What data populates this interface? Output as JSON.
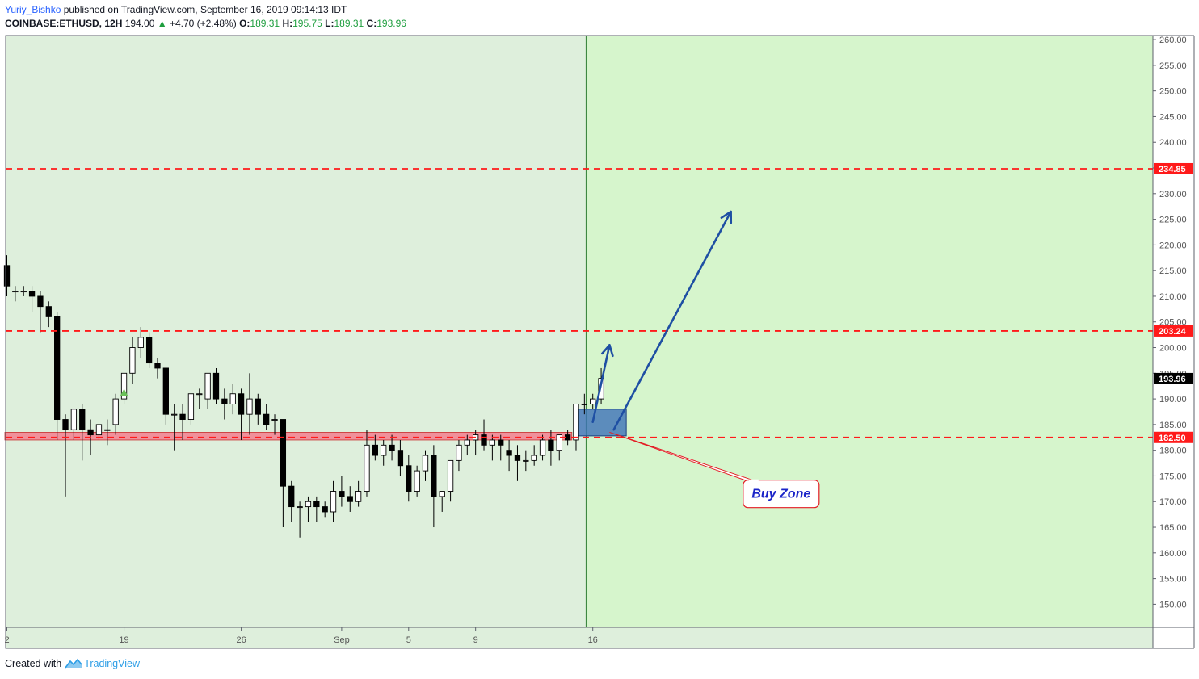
{
  "header": {
    "author": "Yuriy_Bishko",
    "published_text": "published on TradingView.com, September 16, 2019 09:14:13 IDT",
    "symbol": "COINBASE:ETHUSD, 12H",
    "last": "194.00",
    "change_arrow": "▲",
    "change": "+4.70 (+2.48%)",
    "o_label": "O:",
    "o_value": "189.31",
    "h_label": "H:",
    "h_value": "195.75",
    "l_label": "L:",
    "l_value": "189.31",
    "c_label": "C:",
    "c_value": "193.96"
  },
  "footer": {
    "created_with": "Created with",
    "brand": "TradingView",
    "logo_icon": "tradingview-logo-icon"
  },
  "chart_data": {
    "type": "candlestick",
    "title": "",
    "xlabel": "",
    "ylabel": "",
    "ylim": [
      145.5,
      260.8
    ],
    "y_ticks": [
      150,
      155,
      160,
      165,
      170,
      175,
      180,
      185,
      190,
      195,
      200,
      205,
      210,
      215,
      220,
      225,
      230,
      235,
      240,
      245,
      250,
      255,
      260
    ],
    "y_tick_labels": [
      "150.00",
      "155.00",
      "160.00",
      "165.00",
      "170.00",
      "175.00",
      "180.00",
      "185.00",
      "190.00",
      "195.00",
      "200.00",
      "205.00",
      "210.00",
      "215.00",
      "220.00",
      "225.00",
      "230.00",
      "235.00",
      "240.00",
      "245.00",
      "250.00",
      "255.00",
      "260.00"
    ],
    "x_ticks": [
      {
        "label": "2",
        "index": 0
      },
      {
        "label": "19",
        "index": 14
      },
      {
        "label": "26",
        "index": 28
      },
      {
        "label": "Sep",
        "index": 40
      },
      {
        "label": "5",
        "index": 48
      },
      {
        "label": "9",
        "index": 56
      },
      {
        "label": "16",
        "index": 70
      }
    ],
    "grid": false,
    "candles": [
      [
        216,
        218,
        210,
        212
      ],
      [
        211,
        212,
        209,
        211
      ],
      [
        211,
        212,
        210,
        211
      ],
      [
        211,
        212,
        207,
        210
      ],
      [
        210,
        211,
        203,
        208
      ],
      [
        208,
        209,
        204,
        206
      ],
      [
        206,
        207,
        182,
        186
      ],
      [
        186,
        187,
        171,
        184
      ],
      [
        184,
        188,
        182,
        188
      ],
      [
        188,
        189,
        178,
        184
      ],
      [
        184,
        186,
        179,
        183
      ],
      [
        183,
        185,
        182,
        185
      ],
      [
        184,
        186,
        181,
        184
      ],
      [
        185,
        191,
        183,
        190
      ],
      [
        190,
        195,
        189,
        195
      ],
      [
        195,
        202,
        193,
        200
      ],
      [
        200,
        204,
        198,
        202
      ],
      [
        202,
        203,
        196,
        197
      ],
      [
        197,
        198,
        194,
        196
      ],
      [
        196,
        196,
        185,
        187
      ],
      [
        187,
        189,
        180,
        187
      ],
      [
        187,
        189,
        182,
        186
      ],
      [
        186,
        191,
        185,
        191
      ],
      [
        191,
        192,
        188,
        191
      ],
      [
        190,
        195,
        188,
        195
      ],
      [
        195,
        196,
        189,
        190
      ],
      [
        190,
        192,
        186,
        189
      ],
      [
        189,
        193,
        187,
        191
      ],
      [
        191,
        192,
        182,
        187
      ],
      [
        187,
        195,
        183,
        190
      ],
      [
        190,
        191,
        185,
        187
      ],
      [
        187,
        189,
        184,
        185
      ],
      [
        186,
        187,
        183,
        186
      ],
      [
        186,
        186,
        165,
        173
      ],
      [
        173,
        174,
        166,
        169
      ],
      [
        169,
        170,
        163,
        169
      ],
      [
        169,
        171,
        166,
        170
      ],
      [
        170,
        171,
        166,
        169
      ],
      [
        169,
        170,
        167,
        168
      ],
      [
        168,
        174,
        166,
        172
      ],
      [
        172,
        175,
        169,
        171
      ],
      [
        171,
        173,
        168,
        170
      ],
      [
        170,
        174,
        169,
        172
      ],
      [
        172,
        184,
        171,
        181
      ],
      [
        181,
        183,
        178,
        179
      ],
      [
        179,
        182,
        177,
        181
      ],
      [
        181,
        183,
        178,
        180
      ],
      [
        180,
        182,
        175,
        177
      ],
      [
        177,
        179,
        170,
        172
      ],
      [
        172,
        177,
        171,
        176
      ],
      [
        176,
        180,
        174,
        179
      ],
      [
        179,
        181,
        165,
        171
      ],
      [
        171,
        172,
        168,
        172
      ],
      [
        172,
        178,
        170,
        178
      ],
      [
        178,
        182,
        176,
        181
      ],
      [
        181,
        183,
        179,
        182
      ],
      [
        182,
        184,
        179,
        183
      ],
      [
        183,
        186,
        180,
        181
      ],
      [
        181,
        183,
        178,
        182
      ],
      [
        182,
        183,
        178,
        181
      ],
      [
        180,
        182,
        176,
        179
      ],
      [
        179,
        181,
        174,
        178
      ],
      [
        178,
        180,
        176,
        178
      ],
      [
        178,
        181,
        177,
        179
      ],
      [
        179,
        183,
        178,
        182
      ],
      [
        182,
        184,
        177,
        180
      ],
      [
        180,
        183,
        178,
        183
      ],
      [
        183,
        184,
        181,
        182
      ],
      [
        182,
        189,
        180,
        189
      ],
      [
        189,
        191,
        187,
        189
      ],
      [
        189,
        191,
        188,
        190
      ],
      [
        190,
        196,
        189,
        194
      ]
    ],
    "horizontal_levels": [
      {
        "price": 234.85,
        "label": "234.85",
        "style": "dashed",
        "color": "#ff1a1a"
      },
      {
        "price": 203.24,
        "label": "203.24",
        "style": "dashed",
        "color": "#ff1a1a"
      },
      {
        "price": 182.5,
        "label": "182.50",
        "style": "dashed",
        "color": "#ff1a1a"
      }
    ],
    "last_price": {
      "price": 193.96,
      "label": "193.96"
    },
    "support_zone": {
      "from_index": -1,
      "to_index": 67.5,
      "low": 182.0,
      "high": 183.5,
      "color": "#f28b98"
    },
    "buy_zone_box": {
      "from_index": 68.2,
      "to_index": 74,
      "low": 182.8,
      "high": 188.0,
      "color": "#3d72b8"
    },
    "vertical_marker": {
      "index": 69.2,
      "color": "#2e7d32"
    },
    "future_region_color": "#d6f5cc",
    "past_region_color": "#deefdc",
    "arrows": [
      {
        "from": [
          70.0,
          185.5
        ],
        "to": [
          72.0,
          200.5
        ],
        "color": "#1e4fa3"
      },
      {
        "from": [
          72.5,
          184.0
        ],
        "to": [
          86.5,
          226.5
        ],
        "color": "#1e4fa3"
      }
    ],
    "annotation": {
      "text": "Buy Zone",
      "anchor": [
        72.0,
        183.5
      ],
      "box_center": [
        92.5,
        171.5
      ],
      "color": "#e31b23",
      "text_color": "#1a24c8"
    },
    "signal_marker": {
      "index": 14,
      "price": 191.2,
      "color": "#6bbf59"
    }
  }
}
